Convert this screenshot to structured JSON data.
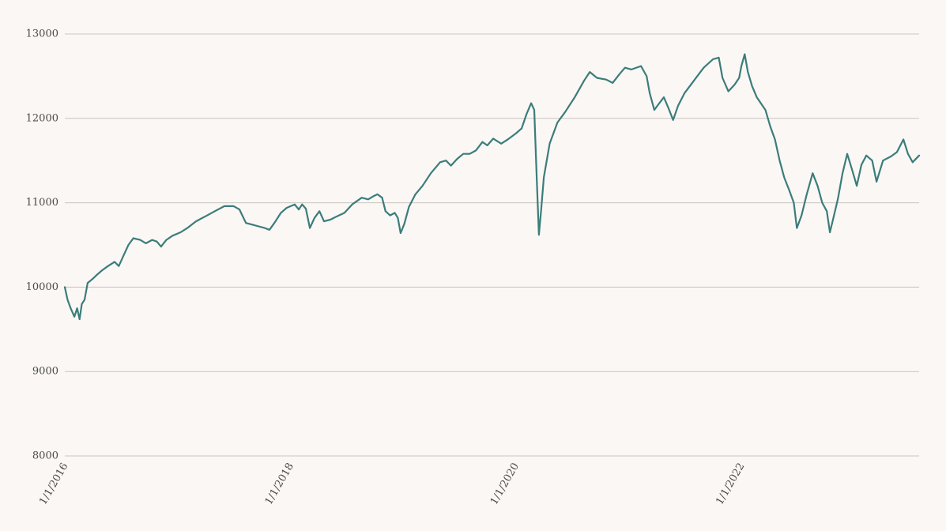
{
  "colors": {
    "line": "#3a7d7b",
    "grid": "#c9c4c1",
    "background": "#fbf7f4",
    "text": "#4a4a4a"
  },
  "chart_data": {
    "type": "line",
    "title": "",
    "xlabel": "",
    "ylabel": "",
    "ylim": [
      8000,
      13000
    ],
    "xlim": [
      "2016-01-01",
      "2023-07-31"
    ],
    "grid": "horizontal",
    "y_ticks": [
      {
        "value": 8000,
        "label": "8000"
      },
      {
        "value": 9000,
        "label": "9000"
      },
      {
        "value": 10000,
        "label": "10000"
      },
      {
        "value": 11000,
        "label": "11000"
      },
      {
        "value": 12000,
        "label": "12000"
      },
      {
        "value": 13000,
        "label": "13000"
      }
    ],
    "x_ticks": [
      {
        "value": "2016-01-01",
        "label": "1/1/2016"
      },
      {
        "value": "2018-01-01",
        "label": "1/1/2018"
      },
      {
        "value": "2020-01-01",
        "label": "1/1/2020"
      },
      {
        "value": "2022-01-01",
        "label": "1/1/2022"
      }
    ],
    "series": [
      {
        "points": [
          [
            "2016-01-01",
            10000
          ],
          [
            "2016-01-10",
            9850
          ],
          [
            "2016-01-20",
            9750
          ],
          [
            "2016-02-01",
            9650
          ],
          [
            "2016-02-10",
            9750
          ],
          [
            "2016-02-18",
            9620
          ],
          [
            "2016-02-25",
            9800
          ],
          [
            "2016-03-05",
            9850
          ],
          [
            "2016-03-15",
            10050
          ],
          [
            "2016-04-01",
            10100
          ],
          [
            "2016-04-15",
            10150
          ],
          [
            "2016-05-01",
            10200
          ],
          [
            "2016-05-20",
            10250
          ],
          [
            "2016-06-10",
            10300
          ],
          [
            "2016-06-24",
            10250
          ],
          [
            "2016-07-10",
            10380
          ],
          [
            "2016-07-25",
            10500
          ],
          [
            "2016-08-10",
            10580
          ],
          [
            "2016-09-01",
            10560
          ],
          [
            "2016-09-20",
            10520
          ],
          [
            "2016-10-10",
            10560
          ],
          [
            "2016-10-25",
            10540
          ],
          [
            "2016-11-08",
            10480
          ],
          [
            "2016-11-25",
            10560
          ],
          [
            "2016-12-15",
            10610
          ],
          [
            "2017-01-10",
            10650
          ],
          [
            "2017-02-01",
            10700
          ],
          [
            "2017-03-01",
            10780
          ],
          [
            "2017-04-01",
            10840
          ],
          [
            "2017-05-01",
            10900
          ],
          [
            "2017-06-01",
            10960
          ],
          [
            "2017-07-01",
            10960
          ],
          [
            "2017-07-20",
            10920
          ],
          [
            "2017-08-10",
            10760
          ],
          [
            "2017-09-01",
            10740
          ],
          [
            "2017-09-20",
            10720
          ],
          [
            "2017-10-10",
            10700
          ],
          [
            "2017-10-25",
            10680
          ],
          [
            "2017-11-10",
            10760
          ],
          [
            "2017-12-01",
            10880
          ],
          [
            "2017-12-20",
            10940
          ],
          [
            "2018-01-15",
            10980
          ],
          [
            "2018-01-28",
            10920
          ],
          [
            "2018-02-08",
            10980
          ],
          [
            "2018-02-20",
            10930
          ],
          [
            "2018-03-05",
            10700
          ],
          [
            "2018-03-20",
            10820
          ],
          [
            "2018-04-05",
            10900
          ],
          [
            "2018-04-20",
            10780
          ],
          [
            "2018-05-10",
            10800
          ],
          [
            "2018-06-01",
            10840
          ],
          [
            "2018-06-25",
            10880
          ],
          [
            "2018-07-20",
            10980
          ],
          [
            "2018-08-20",
            11060
          ],
          [
            "2018-09-10",
            11040
          ],
          [
            "2018-09-28",
            11080
          ],
          [
            "2018-10-10",
            11100
          ],
          [
            "2018-10-25",
            11060
          ],
          [
            "2018-11-05",
            10900
          ],
          [
            "2018-11-20",
            10850
          ],
          [
            "2018-12-05",
            10880
          ],
          [
            "2018-12-15",
            10820
          ],
          [
            "2018-12-24",
            10640
          ],
          [
            "2019-01-05",
            10750
          ],
          [
            "2019-01-20",
            10950
          ],
          [
            "2019-02-10",
            11100
          ],
          [
            "2019-03-05",
            11200
          ],
          [
            "2019-04-01",
            11350
          ],
          [
            "2019-05-01",
            11480
          ],
          [
            "2019-05-20",
            11500
          ],
          [
            "2019-06-05",
            11440
          ],
          [
            "2019-06-25",
            11520
          ],
          [
            "2019-07-15",
            11580
          ],
          [
            "2019-08-05",
            11580
          ],
          [
            "2019-08-25",
            11620
          ],
          [
            "2019-09-15",
            11720
          ],
          [
            "2019-10-01",
            11680
          ],
          [
            "2019-10-20",
            11760
          ],
          [
            "2019-11-15",
            11700
          ],
          [
            "2019-12-10",
            11760
          ],
          [
            "2020-01-01",
            11820
          ],
          [
            "2020-01-20",
            11880
          ],
          [
            "2020-02-05",
            12050
          ],
          [
            "2020-02-20",
            12180
          ],
          [
            "2020-03-01",
            12100
          ],
          [
            "2020-03-09",
            11300
          ],
          [
            "2020-03-16",
            10620
          ],
          [
            "2020-03-23",
            10900
          ],
          [
            "2020-04-01",
            11300
          ],
          [
            "2020-04-20",
            11700
          ],
          [
            "2020-05-15",
            11950
          ],
          [
            "2020-06-10",
            12080
          ],
          [
            "2020-07-10",
            12250
          ],
          [
            "2020-08-10",
            12450
          ],
          [
            "2020-08-28",
            12550
          ],
          [
            "2020-09-20",
            12480
          ],
          [
            "2020-10-20",
            12460
          ],
          [
            "2020-11-10",
            12420
          ],
          [
            "2020-12-01",
            12520
          ],
          [
            "2020-12-20",
            12600
          ],
          [
            "2021-01-10",
            12580
          ],
          [
            "2021-02-10",
            12620
          ],
          [
            "2021-02-28",
            12500
          ],
          [
            "2021-03-10",
            12300
          ],
          [
            "2021-03-25",
            12100
          ],
          [
            "2021-04-10",
            12180
          ],
          [
            "2021-04-25",
            12250
          ],
          [
            "2021-05-10",
            12120
          ],
          [
            "2021-05-25",
            11980
          ],
          [
            "2021-06-10",
            12150
          ],
          [
            "2021-07-01",
            12300
          ],
          [
            "2021-08-01",
            12450
          ],
          [
            "2021-09-01",
            12600
          ],
          [
            "2021-10-01",
            12700
          ],
          [
            "2021-10-20",
            12720
          ],
          [
            "2021-11-01",
            12480
          ],
          [
            "2021-11-20",
            12320
          ],
          [
            "2021-12-10",
            12400
          ],
          [
            "2021-12-25",
            12480
          ],
          [
            "2022-01-01",
            12620
          ],
          [
            "2022-01-12",
            12760
          ],
          [
            "2022-01-22",
            12550
          ],
          [
            "2022-02-05",
            12380
          ],
          [
            "2022-02-20",
            12250
          ],
          [
            "2022-03-05",
            12180
          ],
          [
            "2022-03-20",
            12100
          ],
          [
            "2022-04-05",
            11900
          ],
          [
            "2022-04-20",
            11750
          ],
          [
            "2022-05-05",
            11500
          ],
          [
            "2022-05-20",
            11300
          ],
          [
            "2022-06-05",
            11150
          ],
          [
            "2022-06-20",
            11000
          ],
          [
            "2022-06-30",
            10700
          ],
          [
            "2022-07-15",
            10850
          ],
          [
            "2022-08-01",
            11100
          ],
          [
            "2022-08-20",
            11350
          ],
          [
            "2022-09-05",
            11200
          ],
          [
            "2022-09-20",
            11000
          ],
          [
            "2022-10-05",
            10900
          ],
          [
            "2022-10-15",
            10650
          ],
          [
            "2022-10-25",
            10800
          ],
          [
            "2022-11-10",
            11050
          ],
          [
            "2022-11-25",
            11350
          ],
          [
            "2022-12-10",
            11580
          ],
          [
            "2022-12-25",
            11400
          ],
          [
            "2023-01-10",
            11200
          ],
          [
            "2023-01-25",
            11450
          ],
          [
            "2023-02-10",
            11560
          ],
          [
            "2023-03-01",
            11500
          ],
          [
            "2023-03-15",
            11250
          ],
          [
            "2023-04-05",
            11500
          ],
          [
            "2023-05-01",
            11550
          ],
          [
            "2023-05-20",
            11600
          ],
          [
            "2023-06-10",
            11750
          ],
          [
            "2023-06-25",
            11580
          ],
          [
            "2023-07-10",
            11480
          ],
          [
            "2023-07-31",
            11560
          ]
        ]
      }
    ]
  }
}
